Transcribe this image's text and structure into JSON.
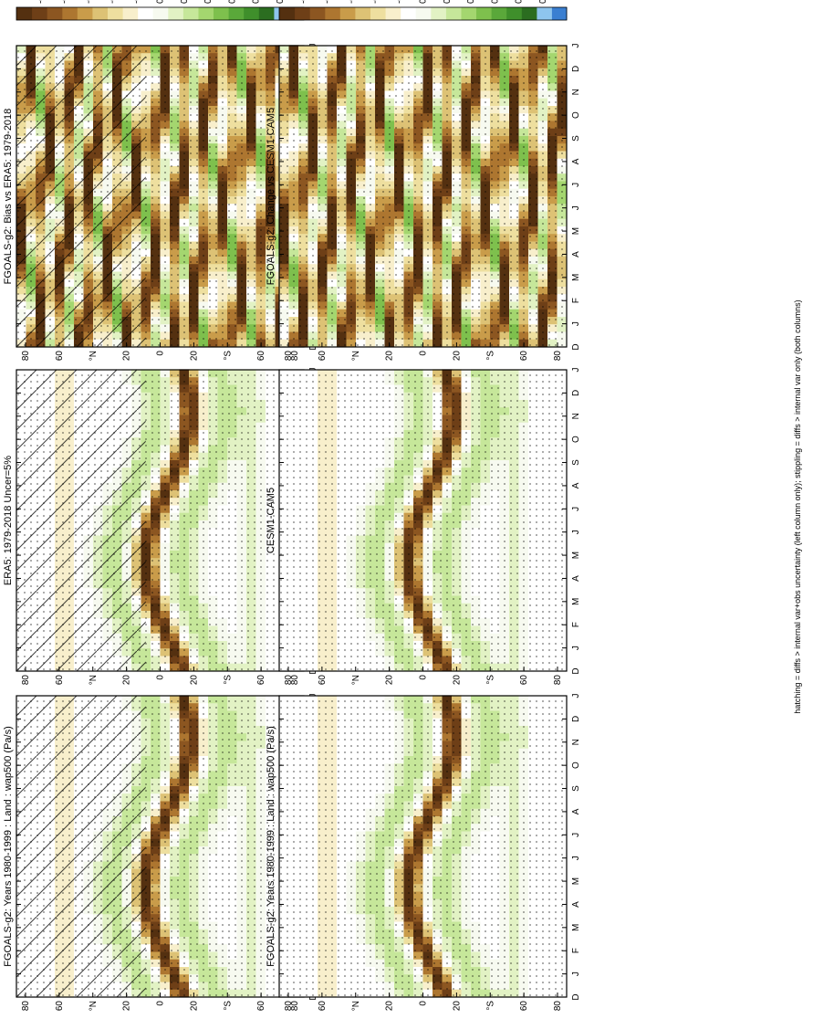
{
  "footer": "hatching = diffs > internal var+obs uncertainty (left column only); stippling = diffs > internal var only (both columns)",
  "colors": {
    "value_scale": [
      "#3a7fd1",
      "#8ec5ee",
      "#2b6d20",
      "#3f8f2b",
      "#5aa83a",
      "#7ec04d",
      "#a4d66f",
      "#c6e79a",
      "#e2f2c4",
      "#f7faf0",
      "#ffffff",
      "#f8efcc",
      "#eedf9f",
      "#ddc275",
      "#c99c4a",
      "#ad7630",
      "#8c5621",
      "#6e3f17",
      "#543010"
    ]
  },
  "chart_data": [
    {
      "type": "heatmap",
      "title": "FGOALS-g2: Years 1980-1999 : Land : wap500 (Pa/s)",
      "x_ticks": [
        "D",
        "J",
        "F",
        "M",
        "A",
        "M",
        "J",
        "J",
        "A",
        "S",
        "O",
        "N",
        "D",
        "J"
      ],
      "y_ticks": [
        "80",
        "60",
        "°N",
        "20",
        "0",
        "20",
        "°S",
        "60",
        "80"
      ],
      "colorbar": [
        "0.05",
        "0.04",
        "0.03",
        "0.02",
        "0.01",
        "0",
        "-0.01",
        "-0.02",
        "-0.03",
        "-0.04",
        "-0.05"
      ],
      "pattern": "itcz",
      "hatch": true,
      "stipple": true
    },
    {
      "type": "heatmap",
      "title": "FGOALS-g2: Years 1980-1999 : Land : wap500 (Pa/s)",
      "x_ticks": [
        "D",
        "J",
        "F",
        "M",
        "A",
        "M",
        "J",
        "J",
        "A",
        "S",
        "O",
        "N",
        "D",
        "J"
      ],
      "y_ticks": [
        "80",
        "60",
        "°N",
        "20",
        "0",
        "20",
        "°S",
        "60",
        "80"
      ],
      "colorbar": [
        "0.05",
        "0.04",
        "0.03",
        "0.02",
        "0.01",
        "0",
        "-0.01",
        "-0.02",
        "-0.03",
        "-0.04",
        "-0.05"
      ],
      "pattern": "itcz",
      "hatch": false,
      "stipple": true
    },
    {
      "type": "heatmap",
      "title": "ERA5: 1979-2018 Uncer=5%",
      "x_ticks": [
        "D",
        "J",
        "F",
        "M",
        "A",
        "M",
        "J",
        "J",
        "A",
        "S",
        "O",
        "N",
        "D",
        "J"
      ],
      "y_ticks": [
        "80",
        "60",
        "°N",
        "20",
        "0",
        "20",
        "°S",
        "60",
        "80"
      ],
      "colorbar": [
        "0.05",
        "0.04",
        "0.03",
        "0.02",
        "0.01",
        "0",
        "-0.01",
        "-0.02",
        "-0.03",
        "-0.04",
        "-0.05"
      ],
      "pattern": "itcz",
      "hatch": true,
      "stipple": true
    },
    {
      "type": "heatmap",
      "title": "CESM1-CAM5",
      "x_ticks": [
        "D",
        "J",
        "F",
        "M",
        "A",
        "M",
        "J",
        "J",
        "A",
        "S",
        "O",
        "N",
        "D",
        "J"
      ],
      "y_ticks": [
        "80",
        "60",
        "°N",
        "20",
        "0",
        "20",
        "°S",
        "60",
        "80"
      ],
      "colorbar": [
        "0.05",
        "0.04",
        "0.03",
        "0.02",
        "0.01",
        "0",
        "-0.01",
        "-0.02",
        "-0.03",
        "-0.04",
        "-0.05"
      ],
      "pattern": "itcz",
      "hatch": false,
      "stipple": true
    },
    {
      "type": "heatmap",
      "title": "FGOALS-g2: Bias vs ERA5: 1979-2018",
      "x_ticks": [
        "D",
        "J",
        "F",
        "M",
        "A",
        "M",
        "J",
        "J",
        "A",
        "S",
        "O",
        "N",
        "D",
        "J"
      ],
      "y_ticks": [
        "80",
        "60",
        "°N",
        "20",
        "0",
        "20",
        "°S",
        "60",
        "80"
      ],
      "colorbar": [
        "0.01",
        "0.008",
        "0.006",
        "0.004",
        "0.002",
        "0",
        "-0.002",
        "-0.004",
        "-0.006",
        "-0.008",
        "-0.01"
      ],
      "pattern": "bias",
      "hatch": true,
      "stipple": true
    },
    {
      "type": "heatmap",
      "title": "FGOALS-g2: Change vs CESM1-CAM5",
      "x_ticks": [
        "D",
        "J",
        "F",
        "M",
        "A",
        "M",
        "J",
        "J",
        "A",
        "S",
        "O",
        "N",
        "D",
        "J"
      ],
      "y_ticks": [
        "80",
        "60",
        "°N",
        "20",
        "0",
        "20",
        "°S",
        "60",
        "80"
      ],
      "colorbar": [
        "0.01",
        "0.008",
        "0.006",
        "0.004",
        "0.002",
        "0",
        "-0.002",
        "-0.004",
        "-0.006",
        "-0.008",
        "-0.01"
      ],
      "pattern": "change",
      "hatch": false,
      "stipple": true
    }
  ]
}
